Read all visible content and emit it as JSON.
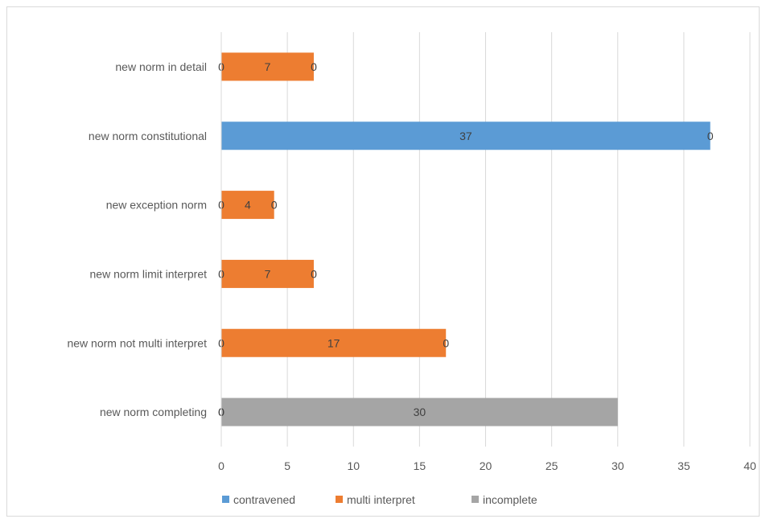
{
  "chart_data": {
    "type": "bar",
    "orientation": "horizontal",
    "stacked": true,
    "categories": [
      "new norm in detail",
      "new norm constitutional",
      "new exception norm",
      "new norm limit interpret",
      "new norm not multi interpret",
      "new norm completing"
    ],
    "series": [
      {
        "name": "contravened",
        "color": "#5b9bd5",
        "values": [
          0,
          37,
          0,
          0,
          0,
          0
        ]
      },
      {
        "name": "multi interpret",
        "color": "#ed7d31",
        "values": [
          7,
          0,
          4,
          7,
          17,
          0
        ]
      },
      {
        "name": "incomplete",
        "color": "#a5a5a5",
        "values": [
          0,
          0,
          0,
          0,
          0,
          30
        ]
      }
    ],
    "data_labels": [
      [
        "0",
        "7",
        "0"
      ],
      [
        "37",
        "0",
        ""
      ],
      [
        "0",
        "4",
        "0"
      ],
      [
        "0",
        "7",
        "0"
      ],
      [
        "0",
        "17",
        "0"
      ],
      [
        "0",
        "0",
        "30"
      ]
    ],
    "xlim": [
      0,
      40
    ],
    "xticks": [
      "0",
      "5",
      "10",
      "15",
      "20",
      "25",
      "30",
      "35",
      "40"
    ],
    "grid": true,
    "legend": "bottom",
    "title": "",
    "xlabel": "",
    "ylabel": ""
  }
}
